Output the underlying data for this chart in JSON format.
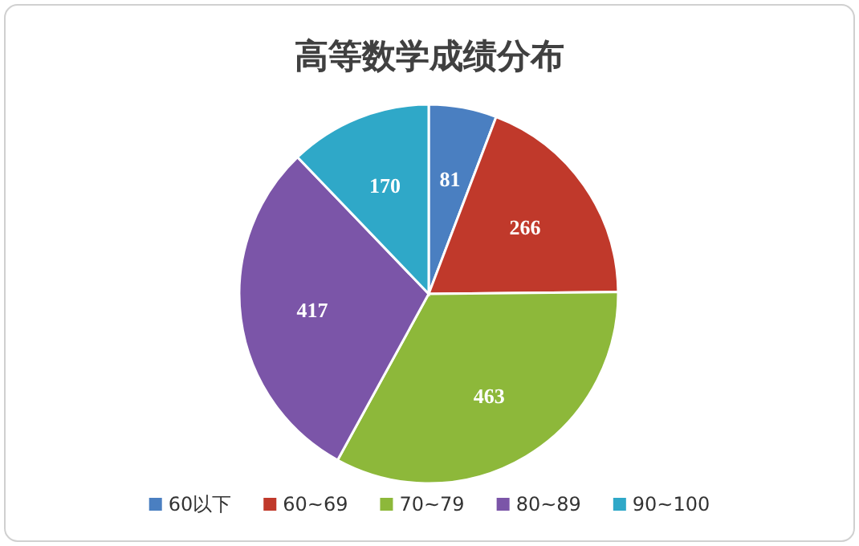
{
  "chart_data": {
    "type": "pie",
    "title": "高等数学成绩分布",
    "categories": [
      "60以下",
      "60~69",
      "70~79",
      "80~89",
      "90~100"
    ],
    "values": [
      81,
      266,
      463,
      417,
      170
    ],
    "colors": [
      "#4a7fc1",
      "#c0392b",
      "#8db83a",
      "#7b55a8",
      "#2fa8c8"
    ],
    "data_labels": true,
    "legend": "bottom"
  }
}
